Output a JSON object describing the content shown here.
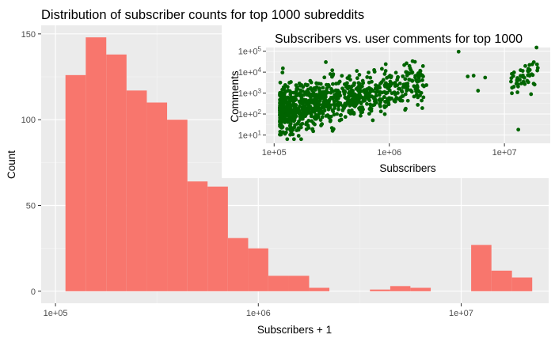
{
  "chart_data": [
    {
      "type": "bar",
      "subtype": "histogram",
      "title": "Distribution of subscriber counts for top 1000 subreddits",
      "xlabel": "Subscribers + 1",
      "ylabel": "Count",
      "x_scale": "log10",
      "xlim": [
        85000,
        27000000
      ],
      "ylim": [
        -7,
        155
      ],
      "x_ticks": [
        100000,
        1000000,
        10000000
      ],
      "x_tick_labels": [
        "1e+05",
        "1e+06",
        "1e+07"
      ],
      "y_ticks": [
        0,
        50,
        100,
        150
      ],
      "y_tick_labels": [
        "0",
        "50",
        "100",
        "150"
      ],
      "grid": true,
      "fill_color": "#f8766d",
      "panel_color": "#ebebeb",
      "bins": [
        {
          "x0": 112000,
          "x1": 141000,
          "count": 126
        },
        {
          "x0": 141000,
          "x1": 178000,
          "count": 148
        },
        {
          "x0": 178000,
          "x1": 224000,
          "count": 138
        },
        {
          "x0": 224000,
          "x1": 282000,
          "count": 117
        },
        {
          "x0": 282000,
          "x1": 355000,
          "count": 110
        },
        {
          "x0": 355000,
          "x1": 447000,
          "count": 100
        },
        {
          "x0": 447000,
          "x1": 562000,
          "count": 64
        },
        {
          "x0": 562000,
          "x1": 708000,
          "count": 61
        },
        {
          "x0": 708000,
          "x1": 891000,
          "count": 31
        },
        {
          "x0": 891000,
          "x1": 1120000,
          "count": 25
        },
        {
          "x0": 1120000,
          "x1": 1410000,
          "count": 9
        },
        {
          "x0": 1410000,
          "x1": 1780000,
          "count": 9
        },
        {
          "x0": 1780000,
          "x1": 2240000,
          "count": 2
        },
        {
          "x0": 2240000,
          "x1": 2820000,
          "count": 0
        },
        {
          "x0": 2820000,
          "x1": 3550000,
          "count": 0
        },
        {
          "x0": 3550000,
          "x1": 4470000,
          "count": 1
        },
        {
          "x0": 4470000,
          "x1": 5620000,
          "count": 3
        },
        {
          "x0": 5620000,
          "x1": 7080000,
          "count": 2
        },
        {
          "x0": 7080000,
          "x1": 8910000,
          "count": 0
        },
        {
          "x0": 8910000,
          "x1": 11200000,
          "count": 0
        },
        {
          "x0": 11200000,
          "x1": 14100000,
          "count": 27
        },
        {
          "x0": 14100000,
          "x1": 17800000,
          "count": 12
        },
        {
          "x0": 17800000,
          "x1": 22400000,
          "count": 8
        }
      ]
    },
    {
      "type": "scatter",
      "title": "Subscribers vs. user comments for top 1000",
      "xlabel": "Subscribers",
      "ylabel": "Comments",
      "x_scale": "log10",
      "y_scale": "log10",
      "xlim": [
        85000,
        25000000
      ],
      "ylim": [
        4,
        150000
      ],
      "x_ticks": [
        100000,
        1000000,
        10000000
      ],
      "x_tick_labels": [
        {
          "base": "1e+05",
          "exp": ""
        },
        {
          "base": "1e+06",
          "exp": ""
        },
        {
          "base": "1e+07",
          "exp": ""
        }
      ],
      "y_ticks": [
        10,
        100,
        1000,
        10000,
        100000
      ],
      "y_tick_labels": [
        {
          "base": "1e+0",
          "exp": "1"
        },
        {
          "base": "1e+0",
          "exp": "2"
        },
        {
          "base": "1e+0",
          "exp": "3"
        },
        {
          "base": "1e+0",
          "exp": "4"
        },
        {
          "base": "1e+0",
          "exp": "5"
        }
      ],
      "grid": true,
      "point_color": "#006400",
      "panel_color": "#ebebeb",
      "points_generation": {
        "n": 1000,
        "seed": 7
      },
      "notable_points": [
        {
          "x": 4000000,
          "y": 95000
        },
        {
          "x": 4800000,
          "y": 6200
        },
        {
          "x": 5400000,
          "y": 6800
        },
        {
          "x": 6800000,
          "y": 5500
        },
        {
          "x": 5900000,
          "y": 1300
        },
        {
          "x": 13200000,
          "y": 18
        },
        {
          "x": 19000000,
          "y": 150000
        },
        {
          "x": 18000000,
          "y": 30000
        },
        {
          "x": 16500000,
          "y": 22000
        },
        {
          "x": 2100000,
          "y": 2400
        },
        {
          "x": 2000000,
          "y": 2100
        }
      ]
    }
  ]
}
